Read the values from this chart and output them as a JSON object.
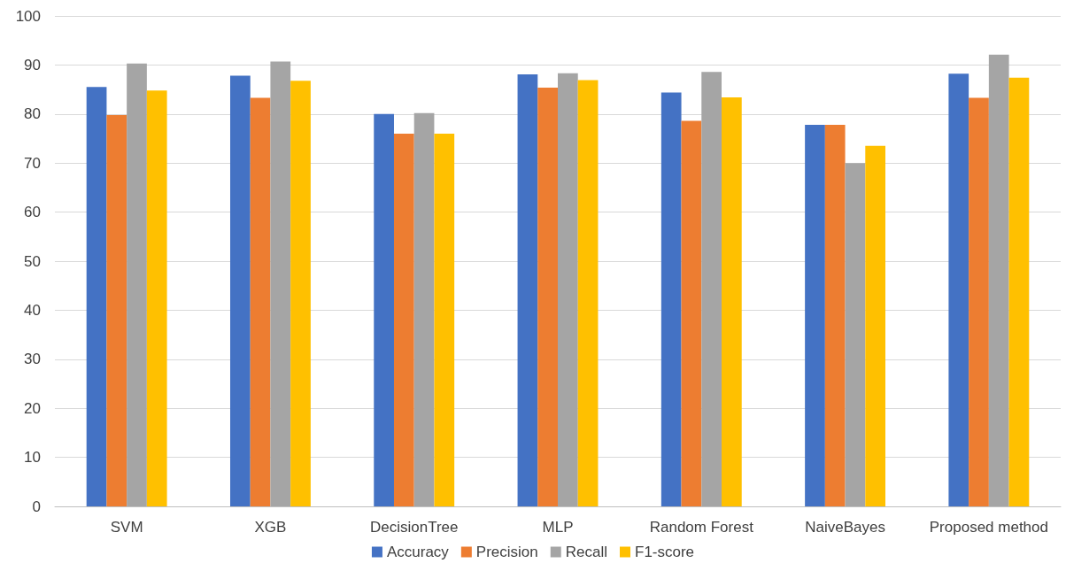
{
  "chart_data": {
    "type": "bar",
    "categories": [
      "SVM",
      "XGB",
      "DecisionTree",
      "MLP",
      "Random Forest",
      "NaiveBayes",
      "Proposed method"
    ],
    "series": [
      {
        "name": "Accuracy",
        "color": "#4472c4",
        "values": [
          85.5,
          87.8,
          80,
          88.1,
          84.4,
          77.8,
          88.2
        ]
      },
      {
        "name": "Precision",
        "color": "#ed7d31",
        "values": [
          79.8,
          83.3,
          76,
          85.4,
          78.6,
          77.8,
          83.3
        ]
      },
      {
        "name": "Recall",
        "color": "#a5a5a5",
        "values": [
          90.3,
          90.7,
          80.2,
          88.3,
          88.6,
          70,
          92.1
        ]
      },
      {
        "name": "F1-score",
        "color": "#ffc000",
        "values": [
          84.8,
          86.8,
          76,
          86.9,
          83.4,
          73.5,
          87.4
        ]
      }
    ],
    "ylim": [
      0,
      100
    ],
    "yticks": [
      0,
      10,
      20,
      30,
      40,
      50,
      60,
      70,
      80,
      90,
      100
    ],
    "grid": "y",
    "legend": "bottom"
  }
}
